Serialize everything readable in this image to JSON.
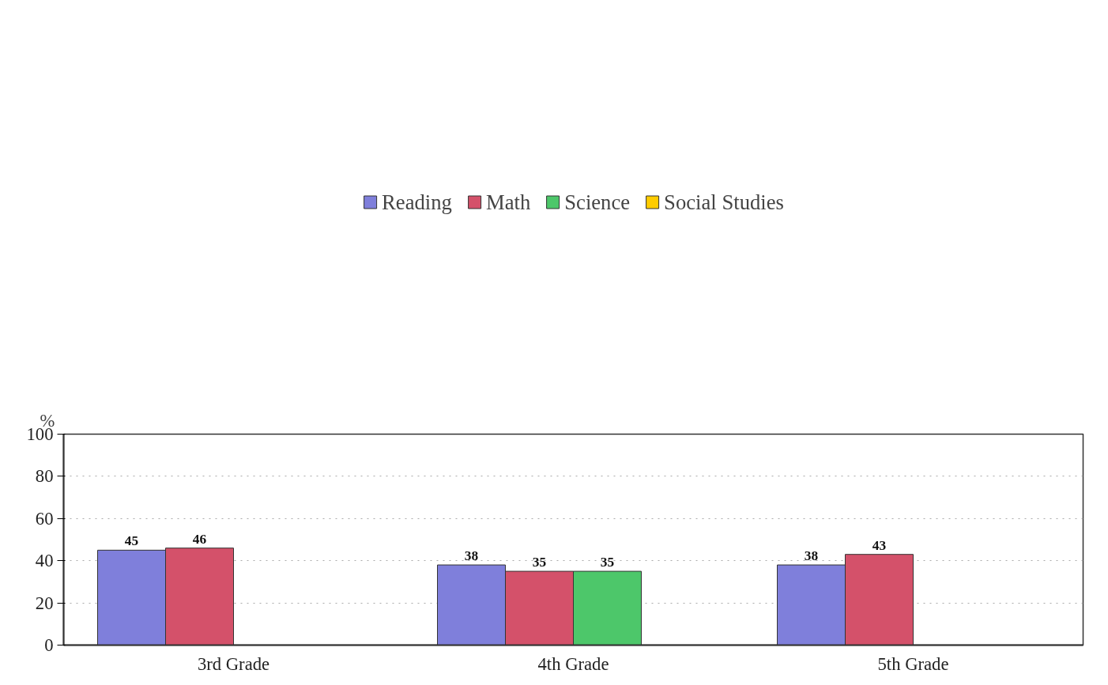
{
  "chart_data": {
    "type": "bar",
    "ylabel": "%",
    "categories": [
      "3rd Grade",
      "4th Grade",
      "5th Grade"
    ],
    "series": [
      {
        "name": "Reading",
        "color": "#7f7fdb",
        "values": [
          45,
          38,
          38
        ]
      },
      {
        "name": "Math",
        "color": "#d4516a",
        "values": [
          46,
          35,
          43
        ]
      },
      {
        "name": "Science",
        "color": "#4dc76a",
        "values": [
          null,
          35,
          null
        ]
      },
      {
        "name": "Social Studies",
        "color": "#ffcc00",
        "values": [
          null,
          null,
          null
        ]
      }
    ],
    "ylim": [
      0,
      100
    ],
    "yticks": [
      0,
      20,
      40,
      60,
      80,
      100
    ],
    "grid": "y",
    "legend": "top",
    "data_labels": true
  }
}
